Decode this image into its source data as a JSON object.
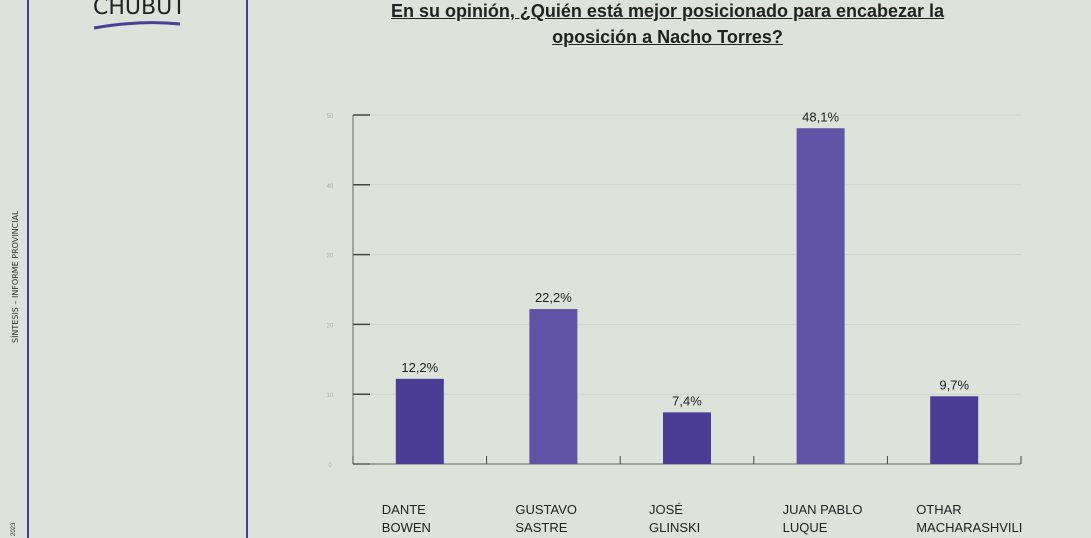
{
  "sidebar": {
    "label": "SÍNTESIS – INFORME PROVINCIAL",
    "year": "2023"
  },
  "brand": "CHUBUT",
  "chart_data": {
    "type": "bar",
    "title": "En su opinión, ¿Quién está mejor posicionado para encabezar la oposición a Nacho Torres?",
    "categories": [
      [
        "DANTE",
        "BOWEN"
      ],
      [
        "GUSTAVO",
        "SASTRE"
      ],
      [
        "JOSÉ",
        "GLINSKI"
      ],
      [
        "JUAN PABLO",
        "LUQUE"
      ],
      [
        "OTHAR",
        "MACHARASHVILI"
      ]
    ],
    "values": [
      12.2,
      22.2,
      7.4,
      48.1,
      9.7
    ],
    "data_labels": [
      "12,2%",
      "22,2%",
      "7,4%",
      "48,1%",
      "9,7%"
    ],
    "ylim": [
      0,
      50
    ],
    "yticks": [
      0,
      10,
      20,
      30,
      40,
      50
    ],
    "grid": true,
    "colors": [
      "#4b3c96",
      "#6153a5",
      "#4b3c96",
      "#6153a5",
      "#4b3c96"
    ]
  }
}
